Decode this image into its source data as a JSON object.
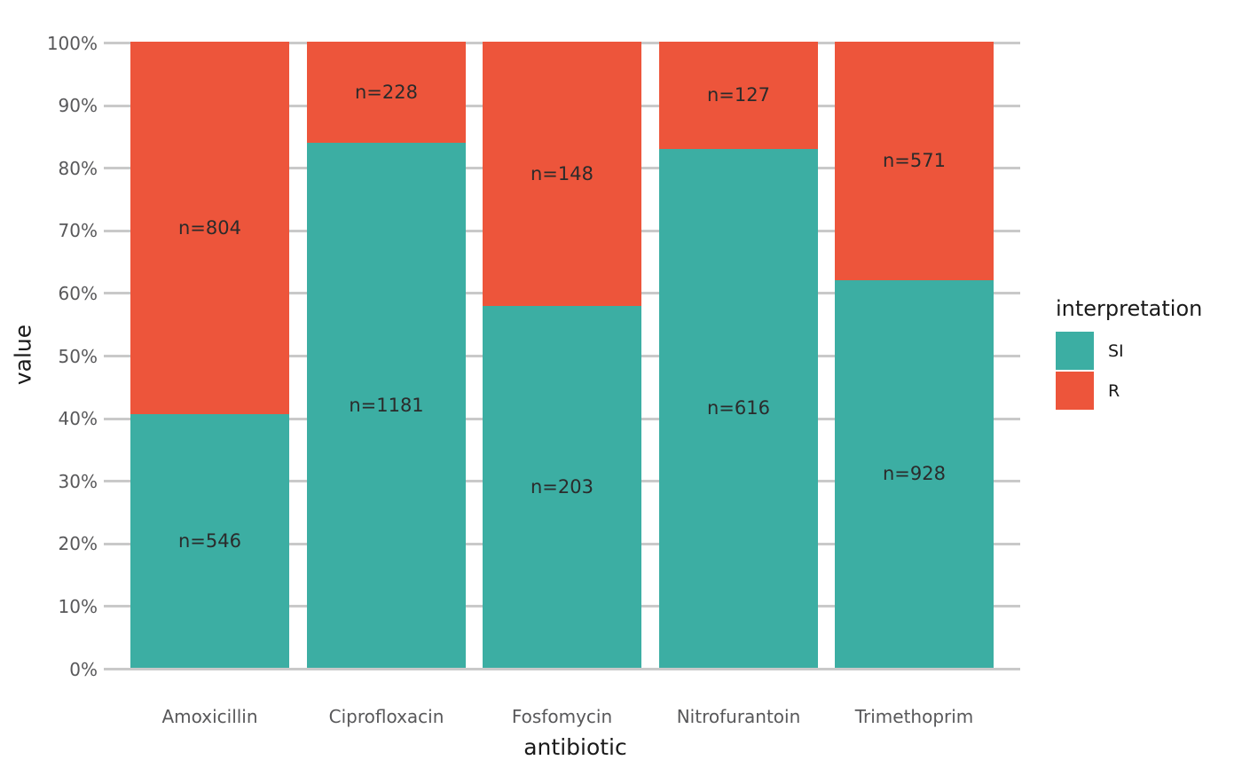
{
  "chart_data": {
    "type": "bar",
    "subtype": "stacked-percent",
    "title": "",
    "xlabel": "antibiotic",
    "ylabel": "value",
    "categories": [
      "Amoxicillin",
      "Ciprofloxacin",
      "Fosfomycin",
      "Nitrofurantoin",
      "Trimethoprim"
    ],
    "series": [
      {
        "name": "SI",
        "color": "#3CAEA3",
        "counts": [
          546,
          1181,
          203,
          616,
          928
        ],
        "labels": [
          "n=546",
          "n=1181",
          "n=203",
          "n=616",
          "n=928"
        ]
      },
      {
        "name": "R",
        "color": "#ED553B",
        "counts": [
          804,
          228,
          148,
          127,
          571
        ],
        "labels": [
          "n=804",
          "n=228",
          "n=148",
          "n=127",
          "n=571"
        ]
      }
    ],
    "si_percent_of_total": [
      40.4,
      83.8,
      57.8,
      82.9,
      61.9
    ],
    "y_ticks": [
      "0%",
      "10%",
      "20%",
      "30%",
      "40%",
      "50%",
      "60%",
      "70%",
      "80%",
      "90%",
      "100%"
    ],
    "ylim": [
      0,
      100
    ],
    "grid": "horizontal-only",
    "legend": {
      "title": "interpretation",
      "position": "right",
      "entries": [
        {
          "label": "SI",
          "color": "#3CAEA3"
        },
        {
          "label": "R",
          "color": "#ED553B"
        }
      ]
    },
    "style_colors": {
      "gridline": "#C9C9C9",
      "tick_label": "#58585A",
      "bar_label": "#2B2B2B",
      "axis_title": "#1A1A1A",
      "background": "#FFFFFF"
    }
  }
}
